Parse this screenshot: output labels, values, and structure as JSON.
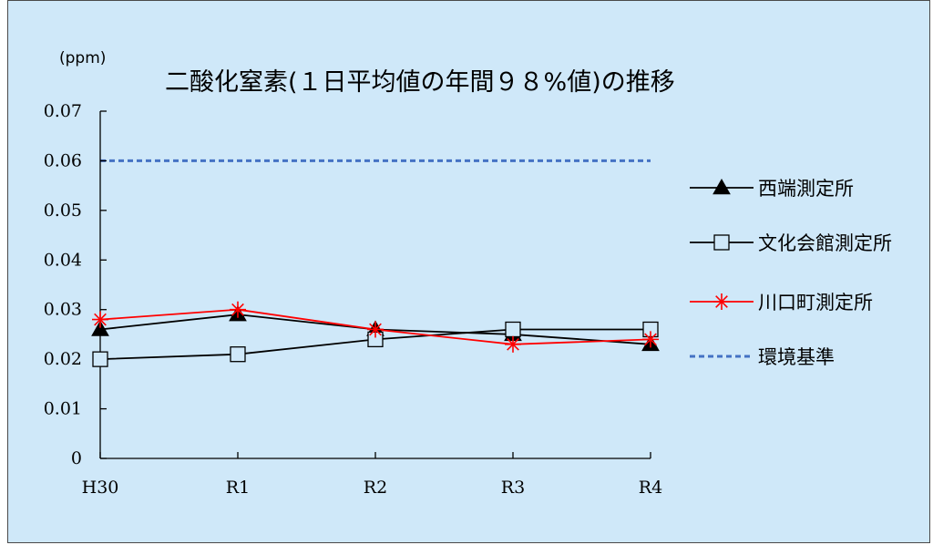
{
  "colors": {
    "background": "#cfe8f9",
    "axis": "#000000",
    "standard_line": "#4472c4",
    "series_black": "#000000",
    "series_red": "#ff0000"
  },
  "chart_data": {
    "type": "line",
    "title": "二酸化窒素(１日平均値の年間９８%値)の推移",
    "unit_label": "(ppm)",
    "xlabel": "",
    "ylabel": "",
    "categories": [
      "H30",
      "R1",
      "R2",
      "R3",
      "R4"
    ],
    "ylim": [
      0,
      0.07
    ],
    "yticks": [
      "0",
      "0.01",
      "0.02",
      "0.03",
      "0.04",
      "0.05",
      "0.06",
      "0.07"
    ],
    "grid": false,
    "legend_position": "right",
    "series": [
      {
        "name": "西端測定所",
        "marker": "triangle-filled",
        "color": "#000000",
        "values": [
          0.026,
          0.029,
          0.026,
          0.025,
          0.023
        ]
      },
      {
        "name": "文化会館測定所",
        "marker": "square-open",
        "color": "#000000",
        "values": [
          0.02,
          0.021,
          0.024,
          0.026,
          0.026
        ]
      },
      {
        "name": "川口町測定所",
        "marker": "asterisk",
        "color": "#ff0000",
        "values": [
          0.028,
          0.03,
          0.026,
          0.023,
          0.024
        ]
      }
    ],
    "reference_line": {
      "name": "環境基準",
      "value": 0.06,
      "style": "dashed",
      "color": "#4472c4"
    }
  }
}
